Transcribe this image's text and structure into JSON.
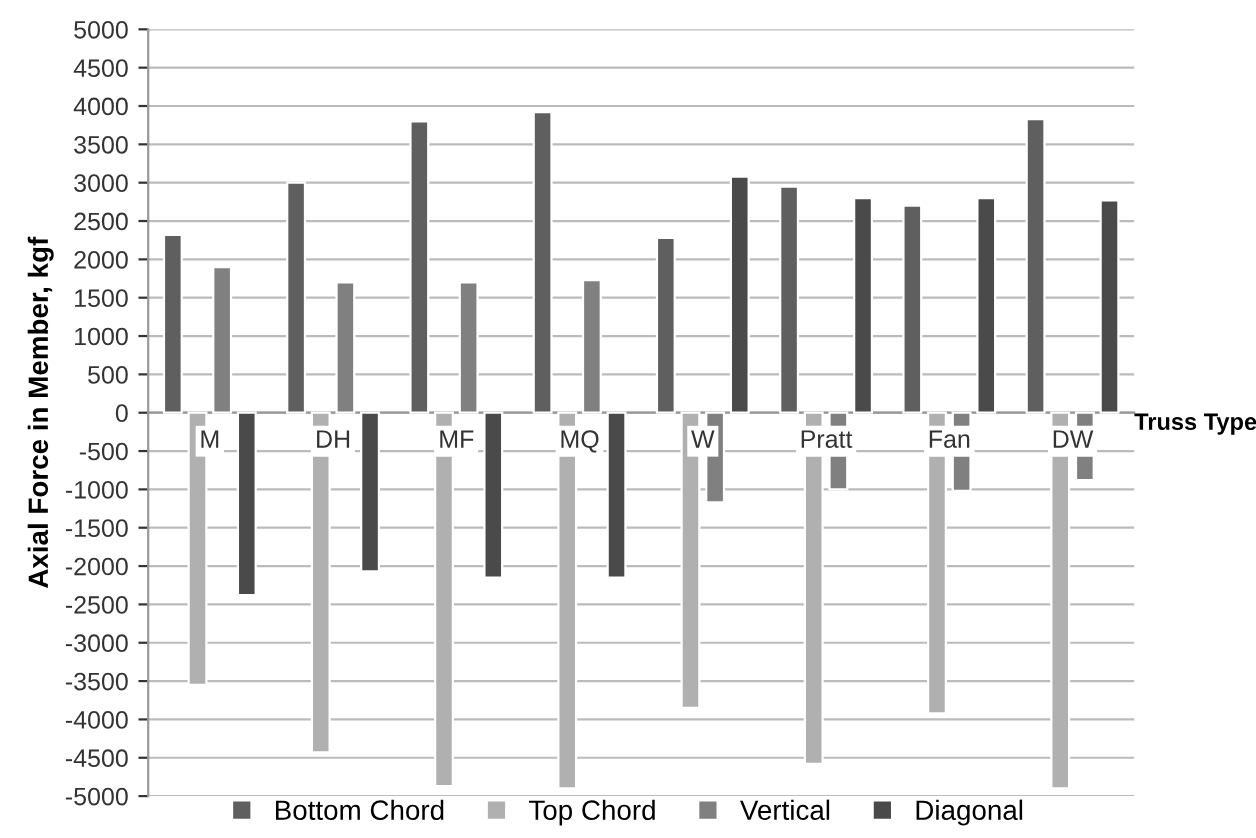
{
  "chart_data": {
    "type": "bar",
    "xlabel": "Truss Type",
    "ylabel": "Axial Force in Member, kgf",
    "categories": [
      "M",
      "DH",
      "MF",
      "MQ",
      "W",
      "Pratt",
      "Fan",
      "DW"
    ],
    "series": [
      {
        "name": "Bottom Chord",
        "color": "#5f5f5f",
        "values": [
          2320,
          3000,
          3800,
          3920,
          2280,
          2950,
          2700,
          3830
        ]
      },
      {
        "name": "Top Chord",
        "color": "#b0b0b0",
        "values": [
          -3550,
          -4430,
          -4870,
          -4900,
          -3850,
          -4580,
          -3920,
          -4900
        ]
      },
      {
        "name": "Vertical",
        "color": "#808080",
        "values": [
          1900,
          1700,
          1700,
          1730,
          -1170,
          -1000,
          -1020,
          -880
        ]
      },
      {
        "name": "Diagonal",
        "color": "#4a4a4a",
        "values": [
          -2380,
          -2070,
          -2150,
          -2150,
          3080,
          2800,
          2800,
          2770
        ]
      }
    ],
    "ylim": [
      -5000,
      5000
    ],
    "yticks": [
      -5000,
      -4500,
      -4000,
      -3500,
      -3000,
      -2500,
      -2000,
      -1500,
      -1000,
      -500,
      0,
      500,
      1000,
      1500,
      2000,
      2500,
      3000,
      3500,
      4000,
      4500,
      5000
    ],
    "grid": "y",
    "legend": "bottom"
  }
}
